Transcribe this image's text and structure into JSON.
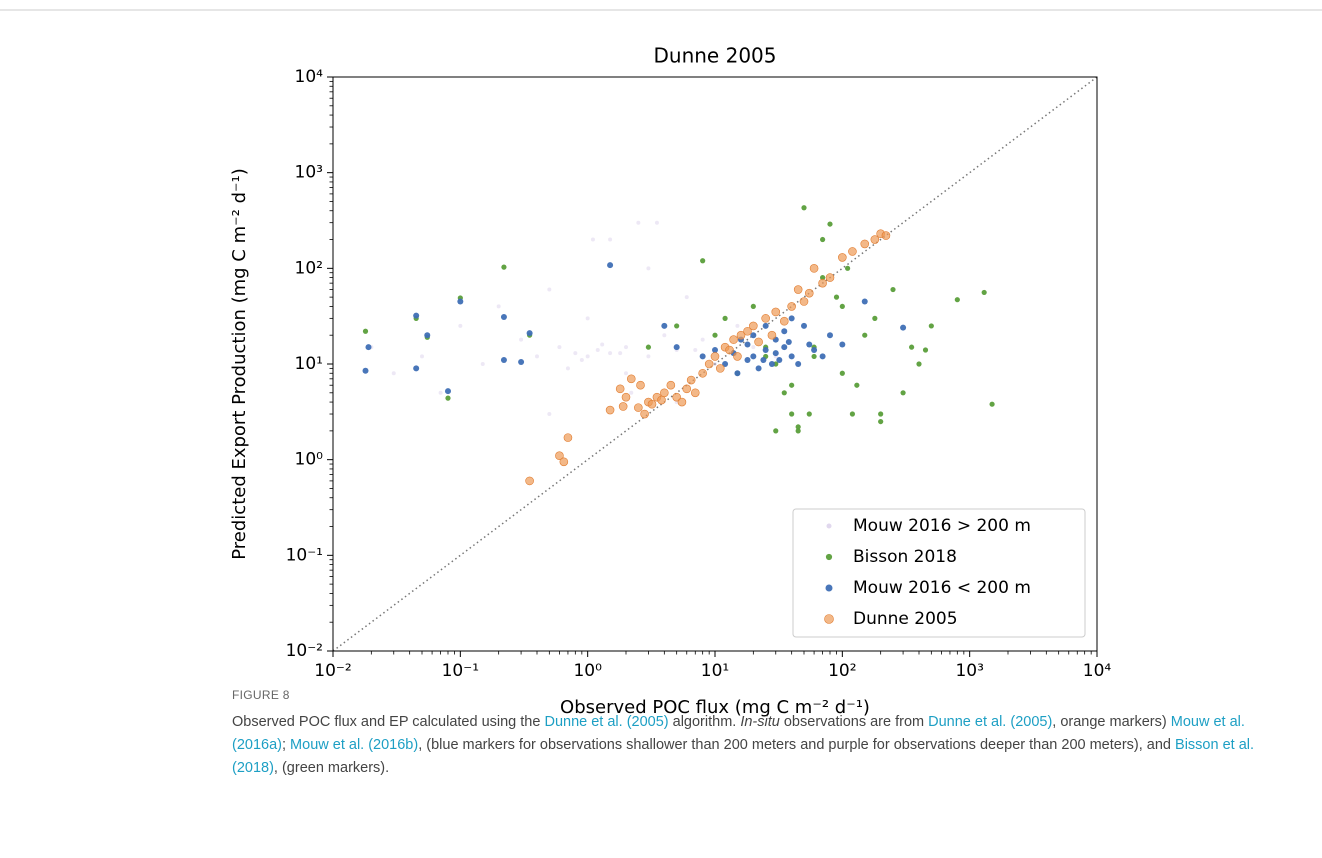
{
  "chart_data": {
    "type": "scatter",
    "title": "Dunne 2005",
    "xlabel": "Observed POC flux (mg C m⁻² d⁻¹)",
    "ylabel": "Predicted Export Production (mg C m⁻² d⁻¹)",
    "xscale": "log",
    "yscale": "log",
    "xlim": [
      0.01,
      10000
    ],
    "ylim": [
      0.01,
      10000
    ],
    "xticks": [
      {
        "value": 0.01,
        "label": "10⁻²"
      },
      {
        "value": 0.1,
        "label": "10⁻¹"
      },
      {
        "value": 1,
        "label": "10⁰"
      },
      {
        "value": 10,
        "label": "10¹"
      },
      {
        "value": 100,
        "label": "10²"
      },
      {
        "value": 1000,
        "label": "10³"
      },
      {
        "value": 10000,
        "label": "10⁴"
      }
    ],
    "yticks": [
      {
        "value": 0.01,
        "label": "10⁻²"
      },
      {
        "value": 0.1,
        "label": "10⁻¹"
      },
      {
        "value": 1,
        "label": "10⁰"
      },
      {
        "value": 10,
        "label": "10¹"
      },
      {
        "value": 100,
        "label": "10²"
      },
      {
        "value": 1000,
        "label": "10³"
      },
      {
        "value": 10000,
        "label": "10⁴"
      }
    ],
    "one_to_one_line": true,
    "legend": "lower right",
    "series": [
      {
        "name": "Mouw 2016 > 200 m",
        "color": "#9a7fc7",
        "x": [
          0.02,
          0.03,
          0.05,
          0.07,
          0.1,
          0.15,
          0.2,
          0.3,
          0.4,
          0.5,
          0.6,
          0.8,
          1,
          1,
          1.2,
          1.5,
          1.5,
          2,
          2,
          2.5,
          3,
          3,
          4,
          5,
          6,
          8,
          10,
          15,
          20,
          30,
          0.9,
          1.3,
          1.8,
          2.2,
          0.7,
          3.5,
          5,
          7,
          0.5,
          1.1
        ],
        "y": [
          15,
          8,
          12,
          5,
          25,
          10,
          40,
          18,
          12,
          60,
          15,
          13,
          12,
          30,
          14,
          13,
          200,
          15,
          8,
          300,
          12,
          100,
          20,
          14,
          50,
          18,
          10,
          25,
          15,
          12,
          11,
          16,
          13,
          5,
          9,
          300,
          4,
          14,
          3,
          200
        ]
      },
      {
        "name": "Bisson 2018",
        "color": "#5a9e3a",
        "x": [
          0.018,
          0.045,
          0.055,
          0.08,
          0.1,
          0.22,
          0.35,
          3,
          5,
          8,
          10,
          12,
          15,
          20,
          25,
          30,
          35,
          40,
          45,
          50,
          55,
          60,
          70,
          80,
          90,
          100,
          110,
          120,
          150,
          180,
          200,
          250,
          300,
          350,
          400,
          500,
          800,
          1300,
          1500,
          40,
          45,
          60,
          130,
          200,
          25,
          70,
          450,
          30,
          100
        ],
        "y": [
          22,
          30,
          19,
          4.4,
          49,
          103,
          20,
          15,
          25,
          120,
          20,
          30,
          8,
          40,
          15,
          10,
          5,
          6,
          2,
          430,
          3,
          12,
          80,
          290,
          50,
          8,
          100,
          3,
          20,
          30,
          2.5,
          60,
          5,
          15,
          10,
          25,
          47,
          56,
          3.8,
          3,
          2.2,
          15,
          6,
          3,
          12,
          200,
          14,
          2,
          40
        ]
      },
      {
        "name": "Mouw 2016 < 200 m",
        "color": "#3f6fb5",
        "x": [
          0.018,
          0.019,
          0.045,
          0.045,
          0.055,
          0.08,
          0.1,
          0.22,
          0.22,
          0.3,
          0.35,
          1.5,
          4,
          5,
          8,
          10,
          12,
          14,
          15,
          16,
          18,
          20,
          20,
          22,
          25,
          25,
          28,
          30,
          30,
          32,
          35,
          35,
          40,
          40,
          45,
          50,
          55,
          60,
          70,
          80,
          100,
          150,
          300,
          18,
          24,
          38
        ],
        "y": [
          8.5,
          15,
          9,
          32,
          20,
          5.2,
          45,
          31,
          11,
          10.5,
          21,
          108,
          25,
          15,
          12,
          14,
          10,
          13,
          8,
          18,
          11,
          12,
          20,
          9,
          14,
          25,
          10,
          13,
          18,
          11,
          15,
          22,
          12,
          30,
          10,
          25,
          16,
          14,
          12,
          20,
          16,
          45,
          24,
          16,
          11,
          17
        ]
      },
      {
        "name": "Dunne 2005",
        "color": "#ee9a55",
        "x": [
          0.35,
          0.6,
          0.65,
          0.7,
          1.5,
          1.8,
          2,
          2.2,
          2.5,
          2.8,
          3,
          3.2,
          3.5,
          4,
          4.5,
          5,
          5.5,
          6,
          7,
          8,
          9,
          10,
          11,
          12,
          13,
          14,
          15,
          16,
          18,
          20,
          22,
          25,
          28,
          30,
          35,
          40,
          45,
          50,
          55,
          60,
          70,
          80,
          100,
          120,
          150,
          180,
          200,
          220,
          2.6,
          3.8,
          1.9,
          6.5
        ],
        "y": [
          0.6,
          1.1,
          0.95,
          1.7,
          3.3,
          5.5,
          4.5,
          7,
          3.5,
          3,
          4,
          3.8,
          4.5,
          5,
          6,
          4.5,
          4,
          5.5,
          5,
          8,
          10,
          12,
          9,
          15,
          14,
          18,
          12,
          20,
          22,
          25,
          17,
          30,
          20,
          35,
          28,
          40,
          60,
          45,
          55,
          100,
          70,
          80,
          130,
          150,
          180,
          200,
          230,
          220,
          6,
          4.2,
          3.6,
          6.8
        ]
      }
    ]
  },
  "caption": {
    "label": "FIGURE 8",
    "parts": [
      {
        "text": "Observed POC flux and EP calculated using the ",
        "kind": "plain"
      },
      {
        "text": "Dunne et al. (2005)",
        "kind": "link"
      },
      {
        "text": " algorithm. ",
        "kind": "plain"
      },
      {
        "text": "In-situ",
        "kind": "italic"
      },
      {
        "text": " observations are from ",
        "kind": "plain"
      },
      {
        "text": "Dunne et al. (2005)",
        "kind": "link"
      },
      {
        "text": ", orange markers) ",
        "kind": "plain"
      },
      {
        "text": "Mouw et al. (2016a)",
        "kind": "link"
      },
      {
        "text": "; ",
        "kind": "plain"
      },
      {
        "text": "Mouw et al. (2016b)",
        "kind": "link"
      },
      {
        "text": ", (blue markers for observations shallower than 200 meters and purple for observations deeper than 200 meters), and ",
        "kind": "plain"
      },
      {
        "text": "Bisson et al. (2018)",
        "kind": "link"
      },
      {
        "text": ", (green markers).",
        "kind": "plain"
      }
    ]
  }
}
